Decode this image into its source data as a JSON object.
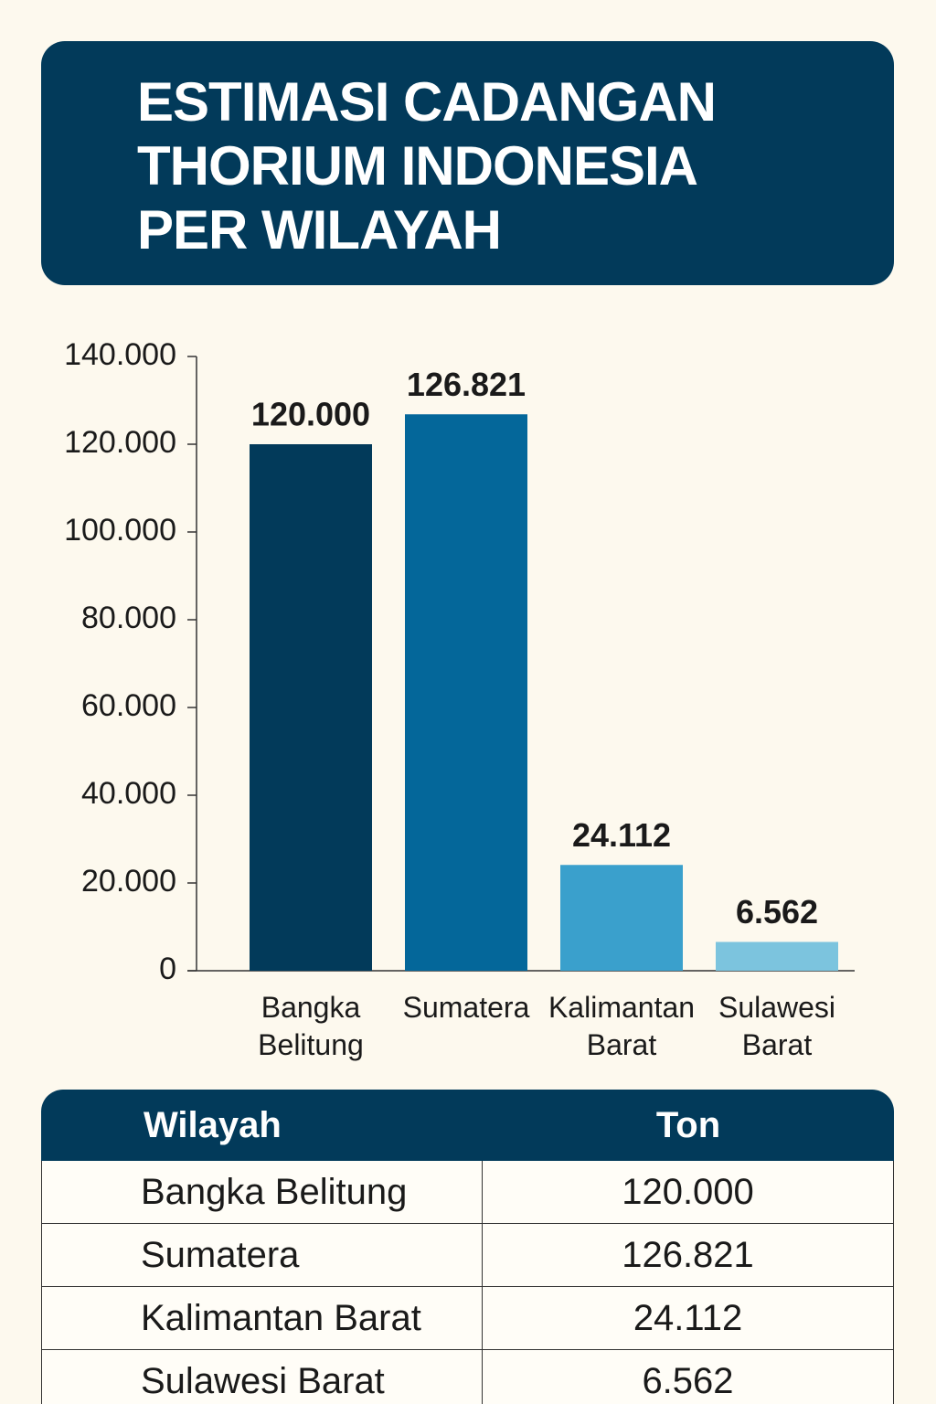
{
  "chart_data": {
    "type": "bar",
    "title": "ESTIMASI CADANGAN THORIUM INDONESIA PER WILAYAH",
    "categories": [
      "Bangka Belitung",
      "Sumatera",
      "Kalimantan Barat",
      "Sulawesi Barat"
    ],
    "values": [
      120000,
      126821,
      24112,
      6562
    ],
    "value_labels": [
      "120.000",
      "126.821",
      "24.112",
      "6.562"
    ],
    "colors": [
      "#023a5a",
      "#04679a",
      "#3aa0cc",
      "#7cc4de"
    ],
    "ylim": [
      0,
      140000
    ],
    "yticks": [
      0,
      {
        "value": 20000,
        "label": "20.000"
      },
      {
        "value": 40000,
        "label": "40.000"
      },
      {
        "value": 60000,
        "label": "60.000"
      },
      {
        "value": 80000,
        "label": "80.000"
      },
      {
        "value": 100000,
        "label": "100.000"
      },
      {
        "value": 120000,
        "label": "120.000"
      },
      {
        "value": 140000,
        "label": "140.000"
      }
    ],
    "grid": false
  },
  "table": {
    "columns": [
      "Wilayah",
      "Ton"
    ],
    "rows": [
      [
        "Bangka Belitung",
        "120.000"
      ],
      [
        "Sumatera",
        "126.821"
      ],
      [
        "Kalimantan Barat",
        "24.112"
      ],
      [
        "Sulawesi Barat",
        "6.562"
      ]
    ]
  }
}
